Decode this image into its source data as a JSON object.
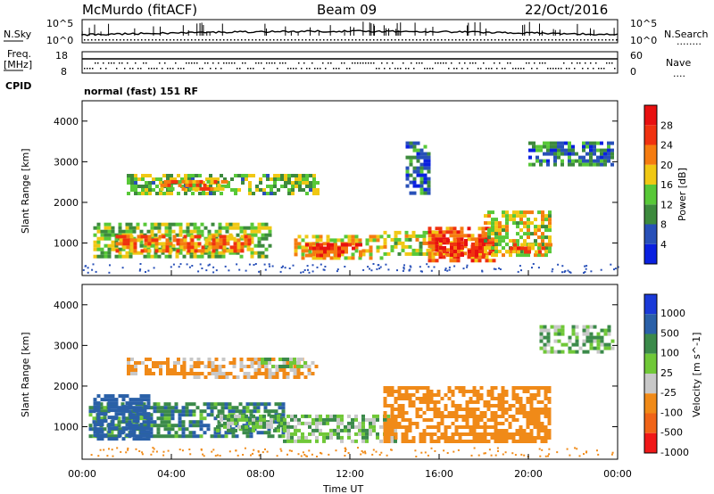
{
  "header": {
    "station": "McMurdo (fitACF)",
    "beam": "Beam 09",
    "date": "22/Oct/2016"
  },
  "param_panels": {
    "nsky_label": "N.Sky",
    "nsearch_label": "N.Search",
    "nsearch_dots": "........",
    "freq_label": "Freq.",
    "freq_unit": "[MHz]",
    "nave_label": "Nave",
    "nave_dots": "....",
    "cpid_label": "CPID",
    "cpid_value": "normal (fast) 151 RF",
    "nsky_ticks": [
      "10^5",
      "10^0"
    ],
    "nsearch_ticks": [
      "10^5",
      "10^0"
    ],
    "freq_ticks": [
      "18",
      "8"
    ],
    "nave_ticks": [
      "60",
      "0"
    ]
  },
  "chart_data": [
    {
      "type": "heatmap",
      "name": "Power",
      "ylabel": "Slant Range [km]",
      "ylim": [
        200,
        4500
      ],
      "yticks": [
        "1000",
        "2000",
        "3000",
        "4000"
      ],
      "xlim": [
        0,
        24
      ],
      "colorbar_label": "Power [dB]",
      "colorbar_ticks": [
        "4",
        "8",
        "12",
        "16",
        "20",
        "24",
        "28"
      ],
      "colors": [
        "#0a20e0",
        "#2850b8",
        "#3d8a3d",
        "#58c838",
        "#f0c814",
        "#f57c10",
        "#f03210",
        "#e81010"
      ],
      "regions": [
        {
          "x": [
            0.5,
            8.5
          ],
          "y": [
            700,
            1500
          ],
          "v": 14
        },
        {
          "x": [
            1.5,
            7.5
          ],
          "y": [
            800,
            1200
          ],
          "v": 22
        },
        {
          "x": [
            2.0,
            10.5
          ],
          "y": [
            2200,
            2700
          ],
          "v": 13
        },
        {
          "x": [
            3.5,
            6.5
          ],
          "y": [
            2300,
            2550
          ],
          "v": 21
        },
        {
          "x": [
            9.5,
            13.5
          ],
          "y": [
            600,
            1200
          ],
          "v": 18
        },
        {
          "x": [
            10.0,
            12.5
          ],
          "y": [
            700,
            1000
          ],
          "v": 26
        },
        {
          "x": [
            13.5,
            16.0
          ],
          "y": [
            700,
            1300
          ],
          "v": 16
        },
        {
          "x": [
            15.5,
            18.5
          ],
          "y": [
            550,
            1400
          ],
          "v": 24
        },
        {
          "x": [
            16.0,
            18.0
          ],
          "y": [
            700,
            1100
          ],
          "v": 28
        },
        {
          "x": [
            18.0,
            21.0
          ],
          "y": [
            700,
            1800
          ],
          "v": 17
        },
        {
          "x": [
            19.0,
            21.0
          ],
          "y": [
            750,
            1000
          ],
          "v": 23
        },
        {
          "x": [
            20.0,
            23.8
          ],
          "y": [
            2900,
            3500
          ],
          "v": 8
        },
        {
          "x": [
            14.5,
            15.5
          ],
          "y": [
            2200,
            3500
          ],
          "v": 7
        }
      ]
    },
    {
      "type": "heatmap",
      "name": "Velocity",
      "ylabel": "Slant Range [km]",
      "ylim": [
        200,
        4500
      ],
      "yticks": [
        "1000",
        "2000",
        "3000",
        "4000"
      ],
      "xlim": [
        0,
        24
      ],
      "xticks": [
        "00:00",
        "04:00",
        "08:00",
        "12:00",
        "16:00",
        "20:00",
        "00:00"
      ],
      "xlabel": "Time UT",
      "colorbar_label": "Velocity [m s^-1]",
      "colorbar_ticks": [
        "1000",
        "500",
        "100",
        "25",
        "-25",
        "-100",
        "-500",
        "-1000"
      ],
      "colors": [
        "#1a3ad8",
        "#2a60a8",
        "#3b8a4a",
        "#70c838",
        "#c8c8c8",
        "#f08a18",
        "#f06418",
        "#f01818"
      ],
      "regions": [
        {
          "x": [
            0.3,
            9.0
          ],
          "y": [
            800,
            1600
          ],
          "v": 80
        },
        {
          "x": [
            0.5,
            3.0
          ],
          "y": [
            700,
            1800
          ],
          "v": 200
        },
        {
          "x": [
            6.0,
            9.0
          ],
          "y": [
            900,
            1300
          ],
          "v": 0
        },
        {
          "x": [
            2.0,
            4.5
          ],
          "y": [
            2300,
            2700
          ],
          "v": -150
        },
        {
          "x": [
            4.5,
            10.5
          ],
          "y": [
            2200,
            2700
          ],
          "v": -120
        },
        {
          "x": [
            8.0,
            10.0
          ],
          "y": [
            2450,
            2700
          ],
          "v": 0
        },
        {
          "x": [
            9.0,
            14.0
          ],
          "y": [
            600,
            1300
          ],
          "v": 0
        },
        {
          "x": [
            13.5,
            21.0
          ],
          "y": [
            600,
            2000
          ],
          "v": -200
        },
        {
          "x": [
            20.5,
            23.8
          ],
          "y": [
            2800,
            3500
          ],
          "v": 0
        }
      ]
    }
  ]
}
